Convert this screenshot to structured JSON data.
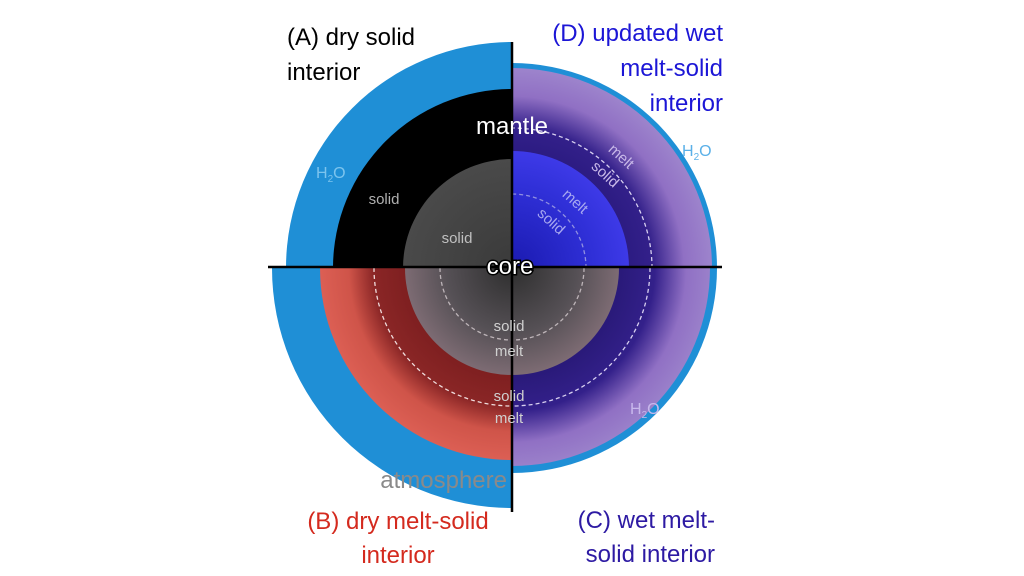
{
  "panels": {
    "A": {
      "line1": "(A) dry solid",
      "line2": "interior",
      "color": "#000000"
    },
    "B": {
      "line1": "(B) dry melt-solid",
      "line2": "interior",
      "color": "#d42a1e"
    },
    "C": {
      "line1": "(C) wet melt-",
      "line2": "solid interior",
      "color": "#2d1aa3"
    },
    "D": {
      "line1": "(D) updated wet",
      "line2": "melt-solid",
      "line3": "interior",
      "color": "#1c16d6"
    }
  },
  "labels": {
    "mantle": "mantle",
    "core": "core",
    "atmosphere": "atmosphere",
    "h2o": "H",
    "h2o_sub": "2",
    "h2o_end": "O",
    "a_mantle_state": "solid",
    "a_core_state": "solid",
    "d_mantle_melt": "melt",
    "d_mantle_solid": "solid",
    "d_core_melt": "melt",
    "d_core_solid": "solid",
    "bc_core_solid": "solid",
    "bc_core_melt": "melt",
    "bc_mantle_solid": "solid",
    "bc_mantle_melt": "melt"
  },
  "colors": {
    "water": "#1f8fd6",
    "a_mantle": "#000000",
    "a_core": "#444444",
    "b_mantle_outer": "#d85a4f",
    "b_mantle_inner": "#8a2424",
    "c_mantle_outer": "#9a7cc8",
    "c_mantle_inner": "#332080",
    "core_melt": "#7a6a70",
    "d_core": "#3a32e0"
  }
}
